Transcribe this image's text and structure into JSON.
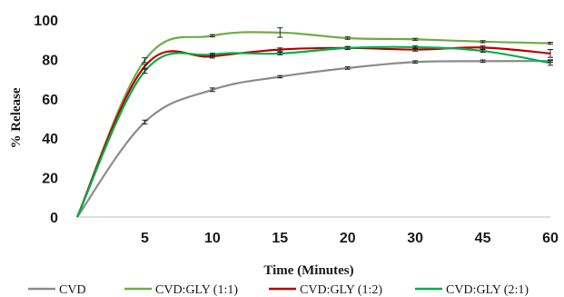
{
  "chart_data": {
    "type": "line",
    "title": "",
    "xlabel": "Time (Minutes)",
    "ylabel": "% Release",
    "x": [
      "0",
      "5",
      "10",
      "15",
      "20",
      "30",
      "45",
      "60"
    ],
    "x_tick_labels": [
      "5",
      "10",
      "15",
      "20",
      "30",
      "45",
      "60"
    ],
    "y_ticks": [
      "0",
      "20",
      "40",
      "60",
      "80",
      "100"
    ],
    "ylim": [
      0,
      100
    ],
    "grid": false,
    "legend_position": "bottom",
    "smooth": true,
    "series": [
      {
        "name": "CVD",
        "color": "#8c8c8c",
        "values": [
          0,
          48.2,
          64.6,
          71.2,
          75.6,
          78.7,
          79.1,
          79.2
        ],
        "errors": [
          0,
          1.0,
          0.9,
          0.6,
          0.6,
          0.6,
          0.6,
          0.6
        ]
      },
      {
        "name": "CVD:GLY (1:1)",
        "color": "#70ad47",
        "values": [
          0,
          79.6,
          92.0,
          93.6,
          90.8,
          90.2,
          89.0,
          88.2
        ],
        "errors": [
          0,
          1.2,
          0.6,
          2.4,
          0.6,
          0.5,
          0.5,
          0.5
        ]
      },
      {
        "name": "CVD:GLY (1:2)",
        "color": "#c00000",
        "values": [
          0,
          76.5,
          81.5,
          85.0,
          85.8,
          85.0,
          86.0,
          83.0
        ],
        "errors": [
          0,
          1.0,
          0.8,
          0.8,
          0.7,
          0.8,
          0.8,
          2.0
        ]
      },
      {
        "name": "CVD:GLY (2:1)",
        "color": "#00b050",
        "values": [
          0,
          74.0,
          82.5,
          83.0,
          85.8,
          86.2,
          84.3,
          78.2
        ],
        "errors": [
          0,
          1.0,
          0.7,
          0.7,
          0.7,
          0.7,
          0.7,
          1.2
        ]
      }
    ]
  }
}
